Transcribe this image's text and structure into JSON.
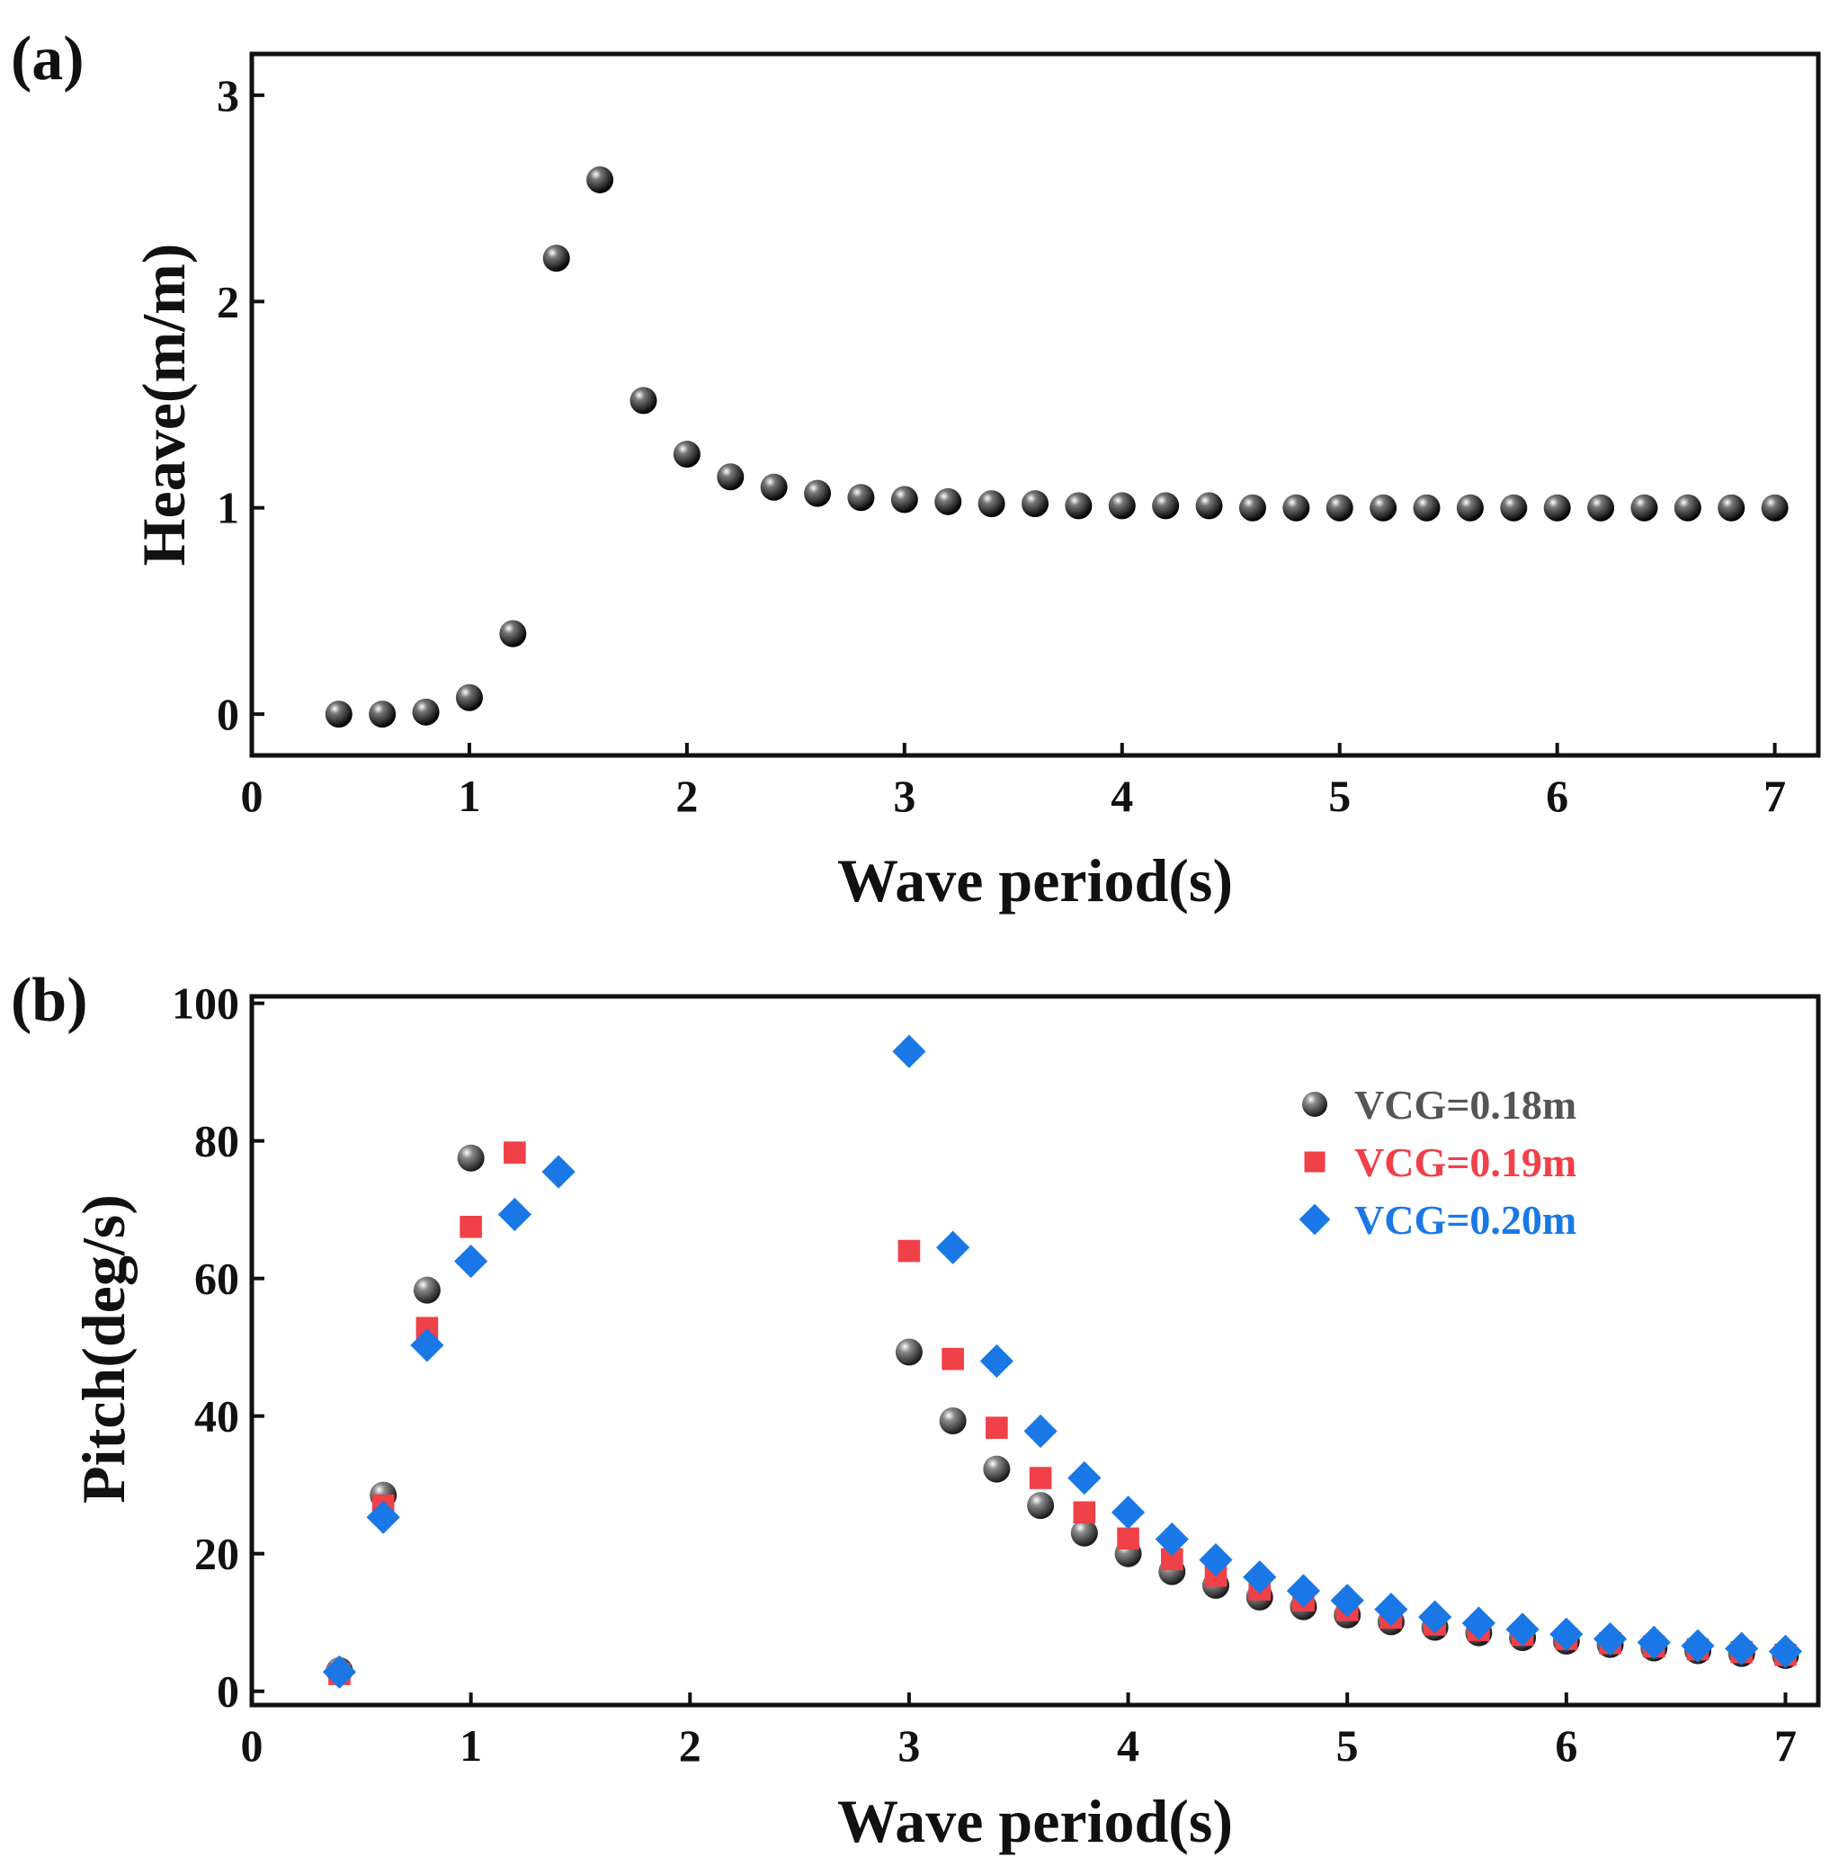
{
  "chart_data": [
    {
      "panel_label": "(a)",
      "type": "scatter",
      "title": "",
      "xlabel": "Wave period(s)",
      "ylabel": "Heave(m/m)",
      "xlim": [
        0,
        7.2
      ],
      "ylim": [
        -0.2,
        3.2
      ],
      "xticks": [
        0,
        1,
        2,
        3,
        4,
        5,
        6,
        7
      ],
      "yticks": [
        0,
        1,
        2,
        3
      ],
      "grid": false,
      "legend": "none",
      "series": [
        {
          "name": "Heave",
          "marker": "sphere",
          "color": "#111111",
          "x": [
            0.4,
            0.6,
            0.8,
            1.0,
            1.2,
            1.4,
            1.6,
            1.8,
            2.0,
            2.2,
            2.4,
            2.6,
            2.8,
            3.0,
            3.2,
            3.4,
            3.6,
            3.8,
            4.0,
            4.2,
            4.4,
            4.6,
            4.8,
            5.0,
            5.2,
            5.4,
            5.6,
            5.8,
            6.0,
            6.2,
            6.4,
            6.6,
            6.8,
            7.0
          ],
          "y": [
            0.0,
            0.0,
            0.01,
            0.08,
            0.39,
            2.21,
            2.59,
            1.52,
            1.26,
            1.15,
            1.1,
            1.07,
            1.05,
            1.04,
            1.03,
            1.02,
            1.02,
            1.01,
            1.01,
            1.01,
            1.01,
            1.0,
            1.0,
            1.0,
            1.0,
            1.0,
            1.0,
            1.0,
            1.0,
            1.0,
            1.0,
            1.0,
            1.0,
            1.0
          ]
        }
      ]
    },
    {
      "panel_label": "(b)",
      "type": "scatter",
      "title": "",
      "xlabel": "Wave period(s)",
      "ylabel": "Pitch(deg/s)",
      "xlim": [
        0,
        7.15
      ],
      "ylim": [
        -2,
        101
      ],
      "xticks": [
        0,
        1,
        2,
        3,
        4,
        5,
        6,
        7
      ],
      "yticks": [
        0,
        20,
        40,
        60,
        80,
        100
      ],
      "grid": false,
      "legend": "top-right",
      "series": [
        {
          "name": "VCG=0.18m",
          "marker": "sphere",
          "color": "#555555",
          "x": [
            0.4,
            0.6,
            0.8,
            1.0,
            3.0,
            3.2,
            3.4,
            3.6,
            3.8,
            4.0,
            4.2,
            4.4,
            4.6,
            4.8,
            5.0,
            5.2,
            5.4,
            5.6,
            5.8,
            6.0,
            6.2,
            6.4,
            6.6,
            6.8,
            7.0
          ],
          "y": [
            3.0,
            28.5,
            58.3,
            77.5,
            49.3,
            39.3,
            32.3,
            27.0,
            23.0,
            20.0,
            17.4,
            15.4,
            13.7,
            12.3,
            11.1,
            10.1,
            9.3,
            8.5,
            7.8,
            7.3,
            6.8,
            6.3,
            5.9,
            5.5,
            5.2
          ]
        },
        {
          "name": "VCG=0.19m",
          "marker": "square",
          "color": "#f04048",
          "x": [
            0.4,
            0.6,
            0.8,
            1.0,
            1.2,
            3.0,
            3.2,
            3.4,
            3.6,
            3.8,
            4.0,
            4.2,
            4.4,
            4.6,
            4.8,
            5.0,
            5.2,
            5.4,
            5.6,
            5.8,
            6.0,
            6.2,
            6.4,
            6.6,
            6.8,
            7.0
          ],
          "y": [
            2.5,
            27.0,
            52.8,
            67.5,
            78.3,
            64.0,
            48.3,
            38.3,
            31.0,
            26.0,
            22.2,
            19.2,
            16.8,
            14.8,
            13.2,
            11.8,
            10.7,
            9.7,
            8.9,
            8.2,
            7.6,
            7.0,
            6.5,
            6.1,
            5.7,
            5.3
          ]
        },
        {
          "name": "VCG=0.20m",
          "marker": "diamond",
          "color": "#1a78e6",
          "x": [
            0.4,
            0.6,
            0.8,
            1.0,
            1.2,
            1.4,
            3.0,
            3.2,
            3.4,
            3.6,
            3.8,
            4.0,
            4.2,
            4.4,
            4.6,
            4.8,
            5.0,
            5.2,
            5.4,
            5.6,
            5.8,
            6.0,
            6.2,
            6.4,
            6.6,
            6.8,
            7.0
          ],
          "y": [
            2.8,
            25.3,
            50.3,
            62.5,
            69.3,
            75.5,
            93.0,
            64.5,
            48.0,
            37.8,
            31.0,
            26.0,
            22.1,
            19.1,
            16.6,
            14.6,
            13.2,
            11.9,
            10.8,
            9.9,
            9.0,
            8.3,
            7.6,
            7.1,
            6.6,
            6.2,
            5.8
          ]
        }
      ]
    }
  ]
}
